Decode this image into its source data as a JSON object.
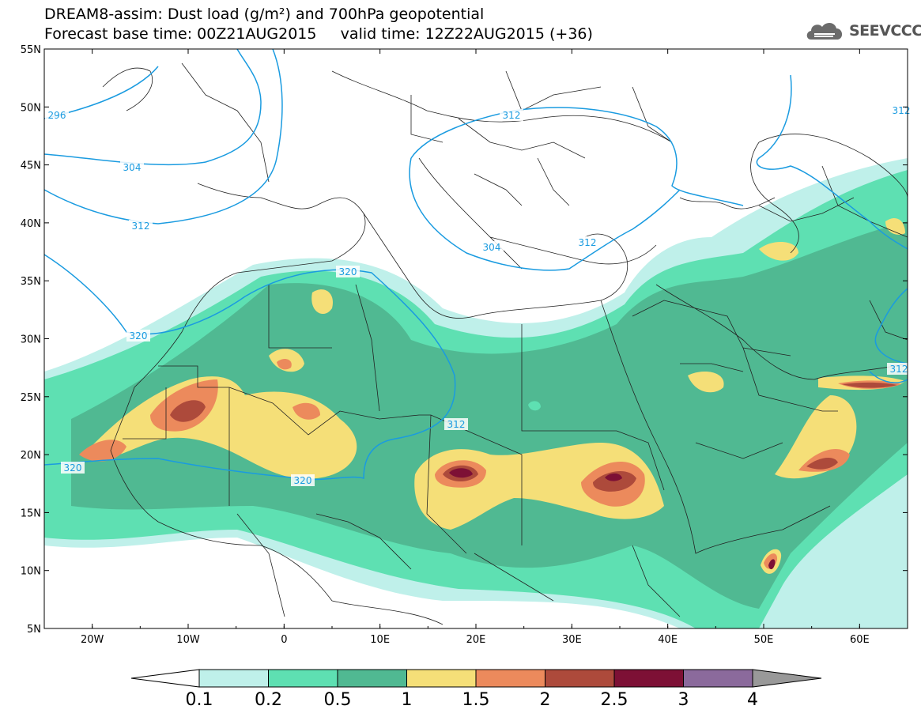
{
  "header": {
    "title_line1": "DREAM8-assim: Dust load (g/m²) and 700hPa geopotential",
    "title_line2": "Forecast base time: 00Z21AUG2015     valid time: 12Z22AUG2015 (+36)",
    "logo_text": "SEEVCCC"
  },
  "map": {
    "lon_labels": [
      "20W",
      "10W",
      "0",
      "10E",
      "20E",
      "30E",
      "40E",
      "50E",
      "60E"
    ],
    "lat_labels": [
      "55N",
      "50N",
      "45N",
      "40N",
      "35N",
      "30N",
      "25N",
      "20N",
      "15N",
      "10N",
      "5N"
    ],
    "lon_range": [
      -25,
      65
    ],
    "lat_range": [
      5,
      55
    ],
    "geopotential_labels": [
      "296",
      "304",
      "312",
      "320",
      "320",
      "320",
      "320",
      "312",
      "312",
      "312",
      "304",
      "312",
      "312"
    ]
  },
  "colorbar": {
    "levels": [
      "0.1",
      "0.2",
      "0.5",
      "1",
      "1.5",
      "2",
      "2.5",
      "3",
      "4"
    ],
    "colors": [
      "#ffffff",
      "#bff0ea",
      "#5ee0b2",
      "#50b992",
      "#f5df78",
      "#ec8a5c",
      "#ad4a3b",
      "#7d1035",
      "#8b6a9c",
      "#999999"
    ]
  }
}
